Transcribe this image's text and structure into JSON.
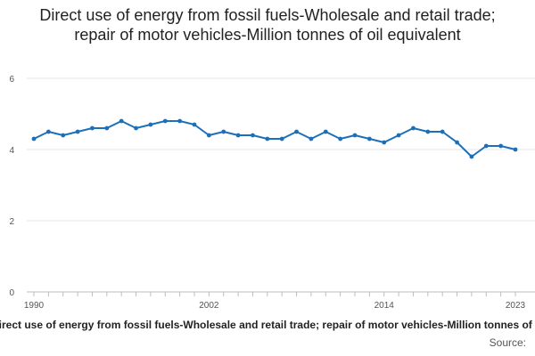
{
  "chart_data": {
    "type": "line",
    "title": "Direct use of energy from fossil fuels-Wholesale and retail trade; repair of motor vehicles-Million tonnes of oil equivalent",
    "xlabel": "",
    "ylabel": "",
    "xlim": [
      1990,
      2023
    ],
    "ylim": [
      0,
      6
    ],
    "yticks": [
      0,
      2,
      4,
      6
    ],
    "xtick_labels": [
      "1990",
      "2002",
      "2014",
      "2023"
    ],
    "grid": true,
    "legend_text": "Direct use of energy from fossil fuels-Wholesale and retail trade; repair of motor vehicles-Million tonnes of oil equivalent",
    "source": "Source:",
    "series": [
      {
        "name": "Direct use of energy from fossil fuels-Wholesale and retail trade; repair of motor vehicles-Million tonnes of oil equivalent",
        "color": "#1d70b8",
        "x": [
          1990,
          1991,
          1992,
          1993,
          1994,
          1995,
          1996,
          1997,
          1998,
          1999,
          2000,
          2001,
          2002,
          2003,
          2004,
          2005,
          2006,
          2007,
          2008,
          2009,
          2010,
          2011,
          2012,
          2013,
          2014,
          2015,
          2016,
          2017,
          2018,
          2019,
          2020,
          2021,
          2022,
          2023
        ],
        "values": [
          4.3,
          4.5,
          4.4,
          4.5,
          4.6,
          4.6,
          4.8,
          4.6,
          4.7,
          4.8,
          4.8,
          4.7,
          4.4,
          4.5,
          4.4,
          4.4,
          4.3,
          4.3,
          4.5,
          4.3,
          4.5,
          4.3,
          4.4,
          4.3,
          4.2,
          4.4,
          4.6,
          4.5,
          4.5,
          4.2,
          3.8,
          4.1,
          4.1,
          4.0
        ]
      }
    ]
  }
}
